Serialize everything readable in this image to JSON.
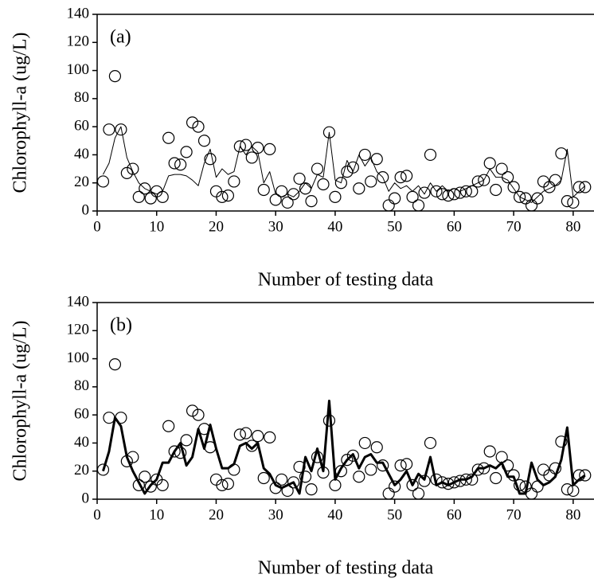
{
  "chart_data": [
    {
      "type": "line",
      "annotation": "(a)",
      "xlabel": "Number of testing data",
      "ylabel": "Chlorophyll-a (ug/L)",
      "xlim": [
        0,
        83.5
      ],
      "xticks": [
        0,
        10,
        20,
        30,
        40,
        50,
        60,
        70,
        80
      ],
      "ylim": [
        0,
        140
      ],
      "yticks": [
        0,
        20,
        40,
        60,
        80,
        100,
        120,
        140
      ],
      "x": [
        1,
        2,
        3,
        4,
        5,
        6,
        7,
        8,
        9,
        10,
        11,
        12,
        13,
        14,
        15,
        16,
        17,
        18,
        19,
        20,
        21,
        22,
        23,
        24,
        25,
        26,
        27,
        28,
        29,
        30,
        31,
        32,
        33,
        34,
        35,
        36,
        37,
        38,
        39,
        40,
        41,
        42,
        43,
        44,
        45,
        46,
        47,
        48,
        49,
        50,
        51,
        52,
        53,
        54,
        55,
        56,
        57,
        58,
        59,
        60,
        61,
        62,
        63,
        64,
        65,
        66,
        67,
        68,
        69,
        70,
        71,
        72,
        73,
        74,
        75,
        76,
        77,
        78,
        79,
        80,
        81,
        82
      ],
      "series": [
        {
          "color": "#000000",
          "marker": "circle",
          "line_width": 0,
          "values": [
            21,
            58,
            96,
            58,
            27,
            30,
            10,
            16,
            9,
            14,
            10,
            52,
            34,
            33,
            42,
            63,
            60,
            50,
            37,
            14,
            10,
            11,
            21,
            46,
            47,
            38,
            45,
            15,
            44,
            8,
            14,
            6,
            12,
            23,
            16,
            7,
            30,
            19,
            56,
            10,
            20,
            28,
            31,
            16,
            40,
            21,
            37,
            24,
            4,
            9,
            24,
            25,
            10,
            4,
            13,
            40,
            14,
            12,
            11,
            12,
            13,
            14,
            14,
            21,
            22,
            34,
            15,
            30,
            24,
            17,
            10,
            9,
            4,
            9,
            21,
            17,
            22,
            41,
            7,
            6,
            17,
            17
          ]
        },
        {
          "color": "#000000",
          "marker": "none",
          "line_width": 1,
          "values": [
            26,
            34,
            52,
            60,
            38,
            28,
            20,
            16,
            14,
            12,
            14,
            25,
            26,
            26,
            25,
            22,
            18,
            34,
            44,
            24,
            30,
            26,
            28,
            46,
            40,
            46,
            42,
            20,
            28,
            12,
            10,
            12,
            10,
            14,
            20,
            16,
            26,
            24,
            56,
            22,
            20,
            36,
            28,
            40,
            32,
            38,
            28,
            24,
            14,
            20,
            16,
            18,
            14,
            18,
            12,
            20,
            14,
            18,
            14,
            16,
            14,
            16,
            18,
            20,
            22,
            30,
            24,
            24,
            22,
            16,
            10,
            8,
            6,
            10,
            14,
            16,
            18,
            22,
            44,
            10,
            14,
            18
          ]
        }
      ]
    },
    {
      "type": "line",
      "annotation": "(b)",
      "xlabel": "Number of testing data",
      "ylabel": "Chlorophyll-a (ug/L)",
      "xlim": [
        0,
        83.5
      ],
      "xticks": [
        0,
        10,
        20,
        30,
        40,
        50,
        60,
        70,
        80
      ],
      "ylim": [
        0,
        140
      ],
      "yticks": [
        0,
        20,
        40,
        60,
        80,
        100,
        120,
        140
      ],
      "x": [
        1,
        2,
        3,
        4,
        5,
        6,
        7,
        8,
        9,
        10,
        11,
        12,
        13,
        14,
        15,
        16,
        17,
        18,
        19,
        20,
        21,
        22,
        23,
        24,
        25,
        26,
        27,
        28,
        29,
        30,
        31,
        32,
        33,
        34,
        35,
        36,
        37,
        38,
        39,
        40,
        41,
        42,
        43,
        44,
        45,
        46,
        47,
        48,
        49,
        50,
        51,
        52,
        53,
        54,
        55,
        56,
        57,
        58,
        59,
        60,
        61,
        62,
        63,
        64,
        65,
        66,
        67,
        68,
        69,
        70,
        71,
        72,
        73,
        74,
        75,
        76,
        77,
        78,
        79,
        80,
        81,
        82
      ],
      "series": [
        {
          "color": "#000000",
          "marker": "circle",
          "line_width": 0,
          "values": [
            21,
            58,
            96,
            58,
            27,
            30,
            10,
            16,
            9,
            14,
            10,
            52,
            34,
            33,
            42,
            63,
            60,
            50,
            37,
            14,
            10,
            11,
            21,
            46,
            47,
            38,
            45,
            15,
            44,
            8,
            14,
            6,
            12,
            23,
            16,
            7,
            30,
            19,
            56,
            10,
            20,
            28,
            31,
            16,
            40,
            21,
            37,
            24,
            4,
            9,
            24,
            25,
            10,
            4,
            13,
            40,
            14,
            12,
            11,
            12,
            13,
            14,
            14,
            21,
            22,
            34,
            15,
            30,
            24,
            17,
            10,
            9,
            4,
            9,
            21,
            17,
            22,
            41,
            7,
            6,
            17,
            17
          ]
        },
        {
          "color": "#000000",
          "marker": "none",
          "line_width": 3,
          "values": [
            20,
            34,
            58,
            52,
            30,
            20,
            12,
            4,
            10,
            14,
            26,
            26,
            34,
            40,
            24,
            30,
            50,
            36,
            53,
            36,
            22,
            22,
            25,
            38,
            40,
            36,
            40,
            22,
            18,
            10,
            8,
            10,
            12,
            4,
            30,
            20,
            36,
            20,
            70,
            14,
            22,
            28,
            32,
            22,
            30,
            32,
            26,
            26,
            18,
            10,
            14,
            20,
            10,
            18,
            14,
            30,
            10,
            12,
            10,
            12,
            14,
            14,
            16,
            22,
            22,
            24,
            22,
            26,
            16,
            16,
            4,
            4,
            26,
            14,
            10,
            12,
            16,
            28,
            51,
            10,
            14,
            17
          ]
        }
      ]
    }
  ]
}
